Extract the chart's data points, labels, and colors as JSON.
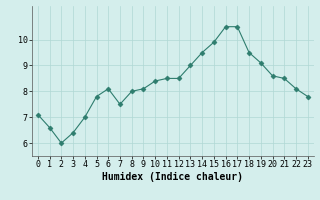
{
  "xlabel": "Humidex (Indice chaleur)",
  "x": [
    0,
    1,
    2,
    3,
    4,
    5,
    6,
    7,
    8,
    9,
    10,
    11,
    12,
    13,
    14,
    15,
    16,
    17,
    18,
    19,
    20,
    21,
    22,
    23
  ],
  "y": [
    7.1,
    6.6,
    6.0,
    6.4,
    7.0,
    7.8,
    8.1,
    7.5,
    8.0,
    8.1,
    8.4,
    8.5,
    8.5,
    9.0,
    9.5,
    9.9,
    10.5,
    10.5,
    9.5,
    9.1,
    8.6,
    8.5,
    8.1,
    7.8
  ],
  "line_color": "#2e7d6e",
  "marker": "D",
  "marker_size": 2.5,
  "bg_color": "#d4eeec",
  "grid_color": "#b0d8d5",
  "ylim": [
    5.5,
    11.3
  ],
  "xlim": [
    -0.5,
    23.5
  ],
  "yticks": [
    6,
    7,
    8,
    9,
    10
  ],
  "xticks": [
    0,
    1,
    2,
    3,
    4,
    5,
    6,
    7,
    8,
    9,
    10,
    11,
    12,
    13,
    14,
    15,
    16,
    17,
    18,
    19,
    20,
    21,
    22,
    23
  ],
  "tick_fontsize": 6,
  "xlabel_fontsize": 7
}
